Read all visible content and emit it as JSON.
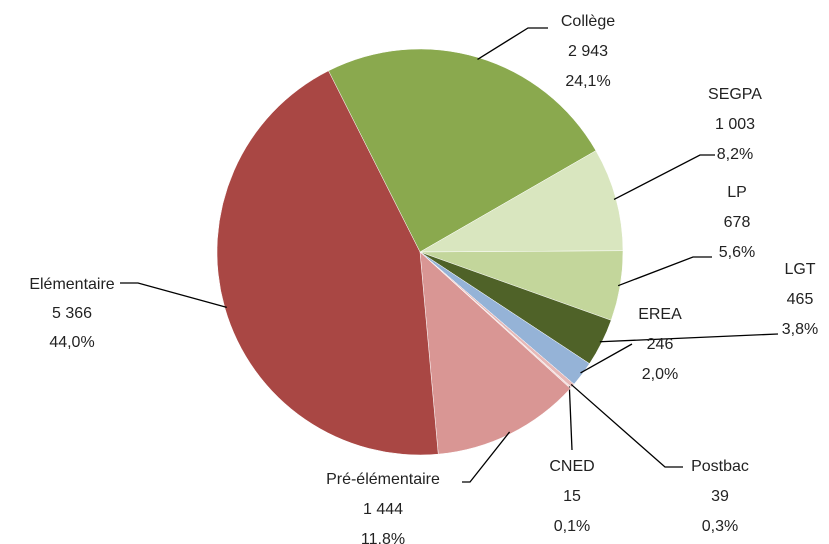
{
  "chart_data": {
    "type": "pie",
    "categories": [
      "Collège",
      "SEGPA",
      "LP",
      "LGT",
      "EREA",
      "Postbac",
      "CNED",
      "Pré-élémentaire",
      "Elémentaire"
    ],
    "values": [
      2943,
      1003,
      678,
      465,
      246,
      39,
      15,
      1444,
      5366
    ],
    "value_labels": [
      "2 943",
      "1 003",
      "678",
      "465",
      "246",
      "39",
      "15",
      "1 444",
      "5 366"
    ],
    "percent_labels": [
      "24,1%",
      "8,2%",
      "5,6%",
      "3,8%",
      "2,0%",
      "0,3%",
      "0,1%",
      "11,8%",
      "44,0%"
    ],
    "colors": [
      "#8aa94e",
      "#d9e6bf",
      "#c3d69b",
      "#4f6228",
      "#95b3d7",
      "#e6b9b8",
      "#f2dcdb",
      "#d99694",
      "#a94744"
    ]
  }
}
